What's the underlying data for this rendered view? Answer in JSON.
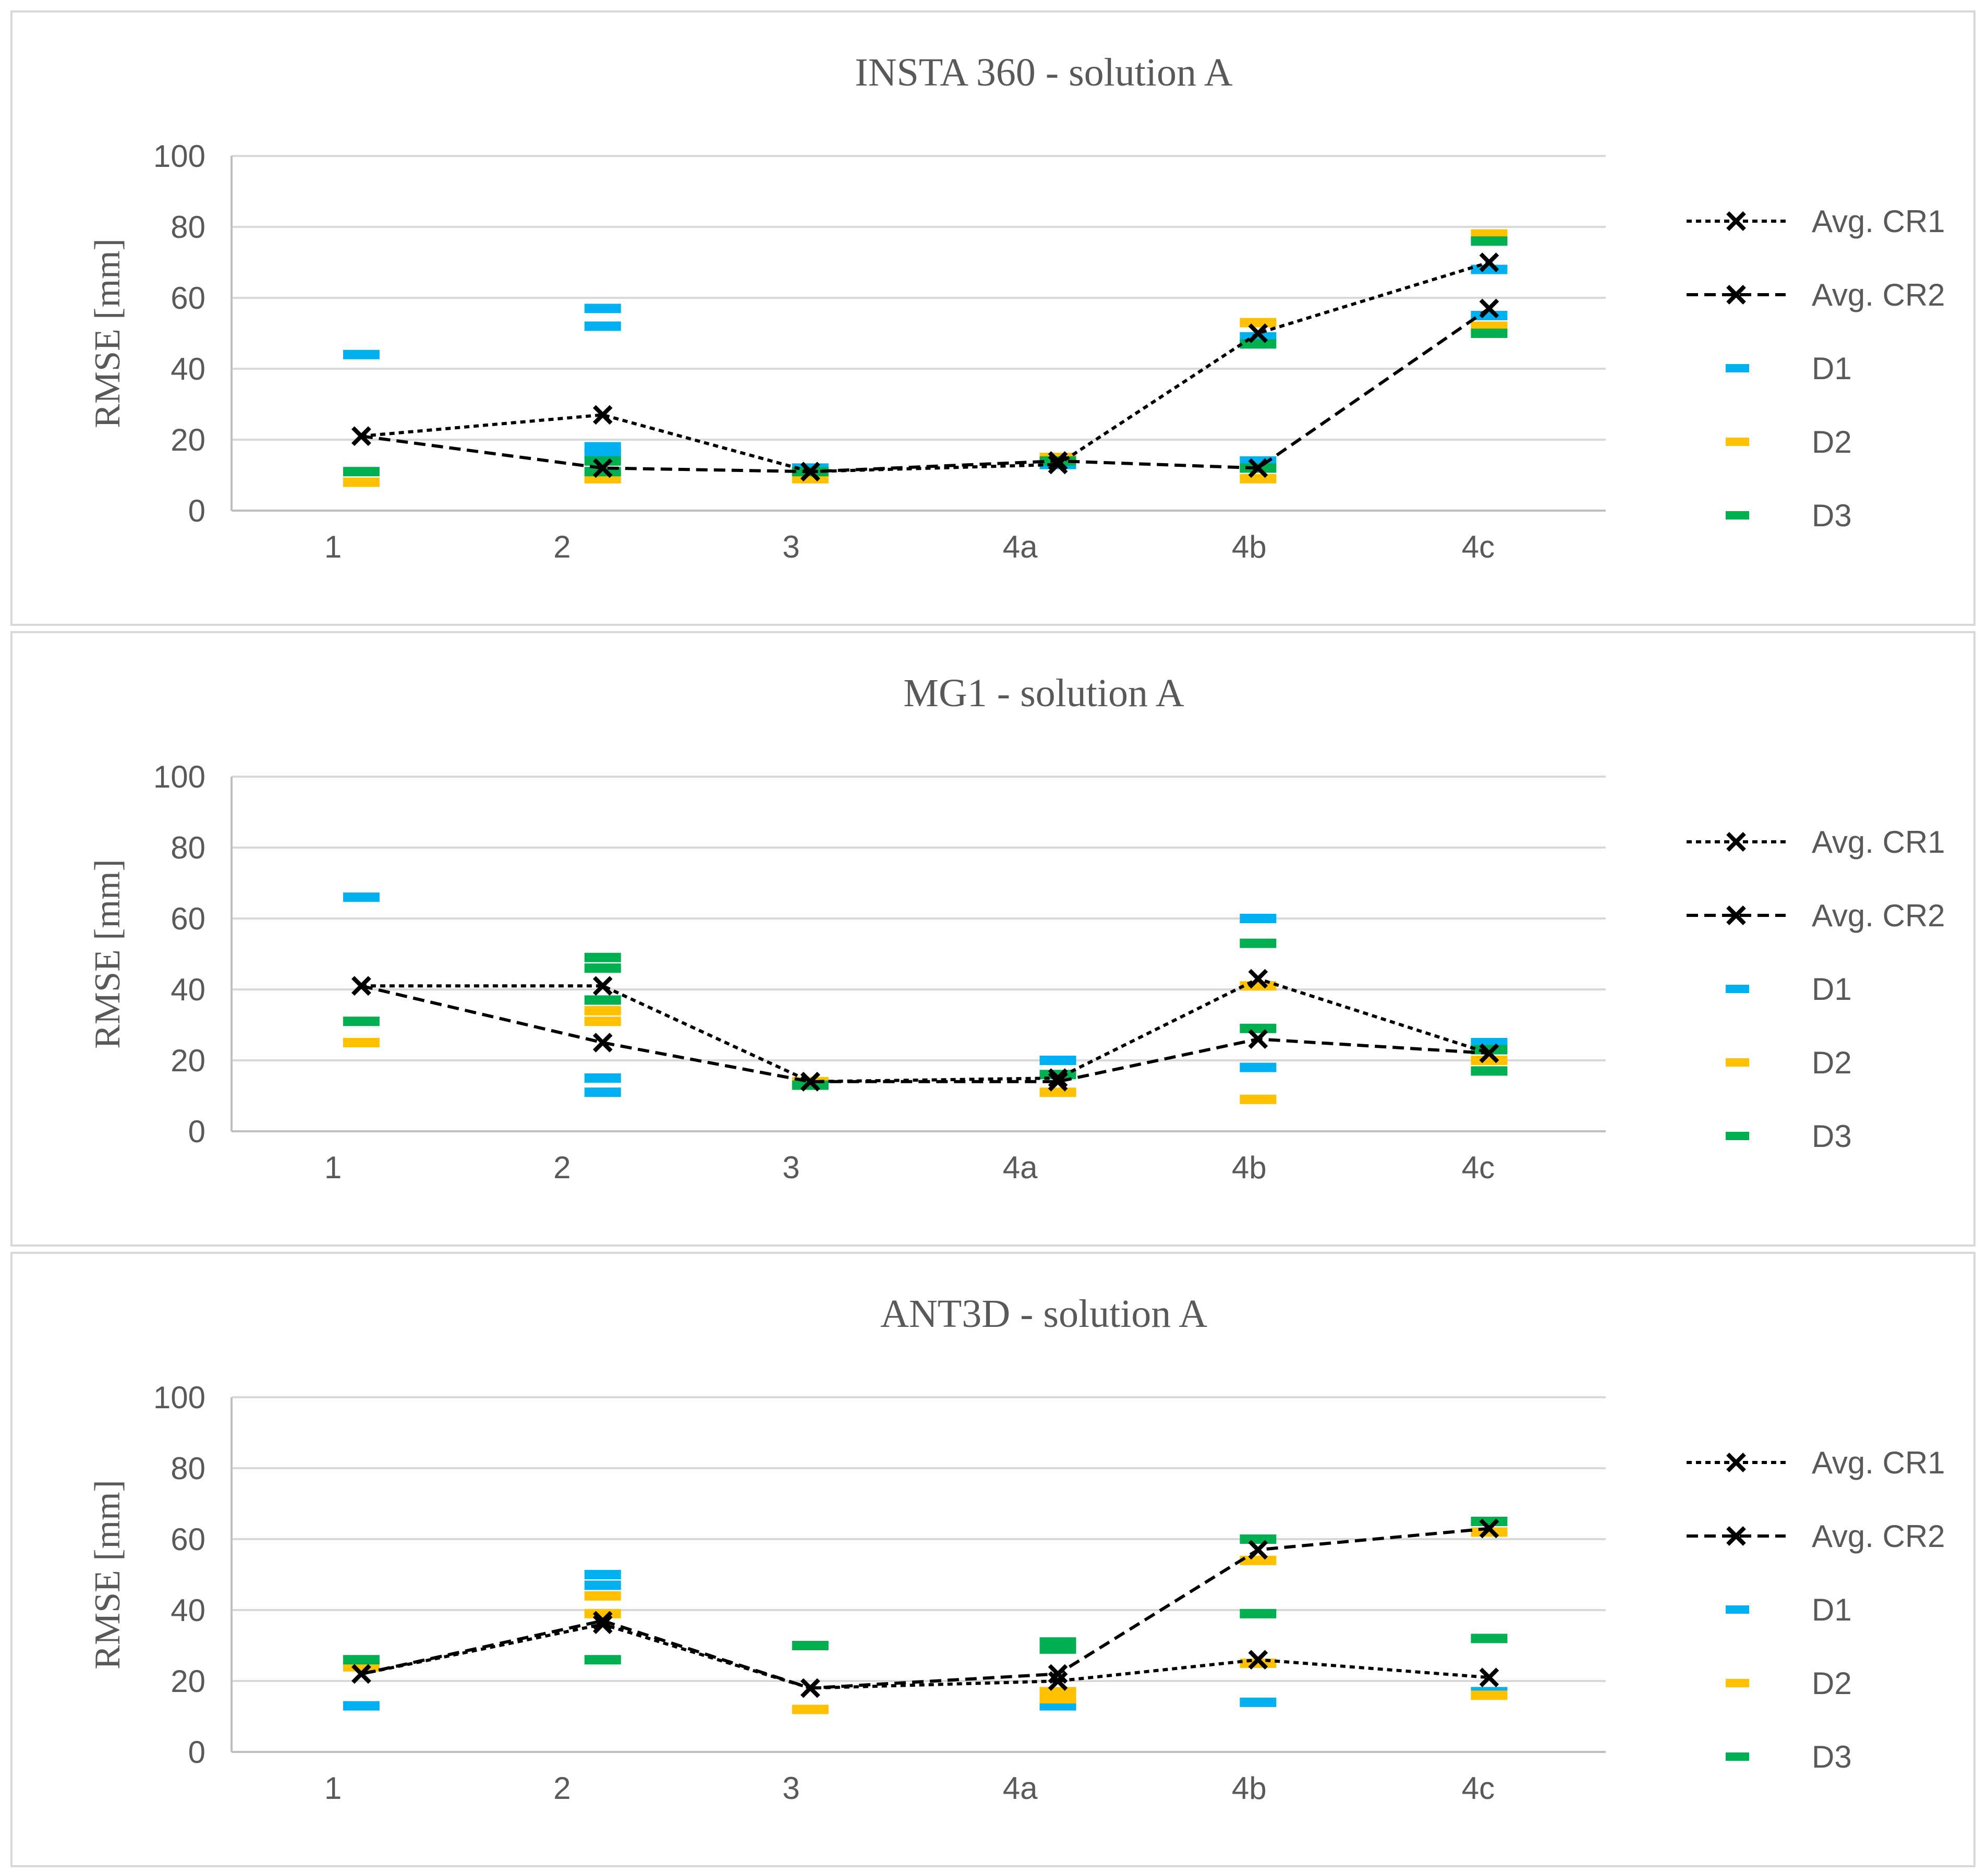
{
  "chart_data": [
    {
      "type": "scatter",
      "title": "INSTA 360 - solution A",
      "xlabel": "",
      "ylabel": "RMSE [mm]",
      "ylim": [
        0,
        100
      ],
      "yticks": [
        0,
        20,
        40,
        60,
        80,
        100
      ],
      "categories": [
        "1",
        "2",
        "3",
        "4a",
        "4b",
        "4c"
      ],
      "grid": true,
      "legend_position": "right",
      "series": [
        {
          "name": "Avg. CR1",
          "kind": "line",
          "style": "dotted",
          "color": "#000000",
          "values": [
            21,
            27,
            11,
            13,
            50,
            70
          ]
        },
        {
          "name": "Avg. CR2",
          "kind": "line",
          "style": "dashed",
          "color": "#000000",
          "values": [
            21,
            12,
            11,
            14,
            12,
            57
          ]
        },
        {
          "name": "D1",
          "kind": "dash",
          "color": "#00b0f0",
          "points": [
            [
              0,
              44
            ],
            [
              1,
              57
            ],
            [
              1,
              52
            ],
            [
              1,
              18
            ],
            [
              1,
              16
            ],
            [
              2,
              12
            ],
            [
              3,
              13
            ],
            [
              4,
              49
            ],
            [
              4,
              14
            ],
            [
              5,
              68
            ],
            [
              5,
              55
            ]
          ]
        },
        {
          "name": "D2",
          "kind": "dash",
          "color": "#ffc000",
          "points": [
            [
              0,
              8
            ],
            [
              1,
              9
            ],
            [
              2,
              9
            ],
            [
              3,
              15
            ],
            [
              4,
              53
            ],
            [
              4,
              9
            ],
            [
              5,
              78
            ],
            [
              5,
              52
            ]
          ]
        },
        {
          "name": "D3",
          "kind": "dash",
          "color": "#00b050",
          "points": [
            [
              0,
              11
            ],
            [
              1,
              14
            ],
            [
              1,
              11
            ],
            [
              2,
              11
            ],
            [
              3,
              14
            ],
            [
              4,
              47
            ],
            [
              4,
              12
            ],
            [
              5,
              76
            ],
            [
              5,
              50
            ]
          ]
        }
      ]
    },
    {
      "type": "scatter",
      "title": "MG1 - solution A",
      "xlabel": "",
      "ylabel": "RMSE [mm]",
      "ylim": [
        0,
        100
      ],
      "yticks": [
        0,
        20,
        40,
        60,
        80,
        100
      ],
      "categories": [
        "1",
        "2",
        "3",
        "4a",
        "4b",
        "4c"
      ],
      "grid": true,
      "legend_position": "right",
      "series": [
        {
          "name": "Avg. CR1",
          "kind": "line",
          "style": "dotted",
          "color": "#000000",
          "values": [
            41,
            41,
            14,
            15,
            43,
            22
          ]
        },
        {
          "name": "Avg. CR2",
          "kind": "line",
          "style": "dashed",
          "color": "#000000",
          "values": [
            41,
            25,
            14,
            14,
            26,
            22
          ]
        },
        {
          "name": "D1",
          "kind": "dash",
          "color": "#00b0f0",
          "points": [
            [
              0,
              66
            ],
            [
              1,
              15
            ],
            [
              1,
              11
            ],
            [
              3,
              20
            ],
            [
              4,
              60
            ],
            [
              4,
              18
            ],
            [
              5,
              25
            ]
          ]
        },
        {
          "name": "D2",
          "kind": "dash",
          "color": "#ffc000",
          "points": [
            [
              0,
              25
            ],
            [
              1,
              34
            ],
            [
              1,
              31
            ],
            [
              2,
              14
            ],
            [
              3,
              11
            ],
            [
              4,
              41
            ],
            [
              4,
              9
            ],
            [
              5,
              20
            ]
          ]
        },
        {
          "name": "D3",
          "kind": "dash",
          "color": "#00b050",
          "points": [
            [
              0,
              31
            ],
            [
              1,
              49
            ],
            [
              1,
              46
            ],
            [
              1,
              37
            ],
            [
              2,
              13
            ],
            [
              3,
              16
            ],
            [
              4,
              53
            ],
            [
              4,
              29
            ],
            [
              5,
              23
            ],
            [
              5,
              17
            ]
          ]
        }
      ]
    },
    {
      "type": "scatter",
      "title": "ANT3D - solution A",
      "xlabel": "",
      "ylabel": "RMSE [mm]",
      "ylim": [
        0,
        100
      ],
      "yticks": [
        0,
        20,
        40,
        60,
        80,
        100
      ],
      "categories": [
        "1",
        "2",
        "3",
        "4a",
        "4b",
        "4c"
      ],
      "grid": true,
      "legend_position": "right",
      "series": [
        {
          "name": "Avg. CR1",
          "kind": "line",
          "style": "dotted",
          "color": "#000000",
          "values": [
            22,
            36,
            18,
            20,
            26,
            21
          ]
        },
        {
          "name": "Avg. CR2",
          "kind": "line",
          "style": "dashed",
          "color": "#000000",
          "values": [
            22,
            37,
            18,
            22,
            57,
            63
          ]
        },
        {
          "name": "D1",
          "kind": "dash",
          "color": "#00b0f0",
          "points": [
            [
              0,
              13
            ],
            [
              1,
              50
            ],
            [
              1,
              47
            ],
            [
              3,
              13
            ],
            [
              4,
              14
            ],
            [
              5,
              17
            ]
          ]
        },
        {
          "name": "D2",
          "kind": "dash",
          "color": "#ffc000",
          "points": [
            [
              0,
              24
            ],
            [
              1,
              44
            ],
            [
              1,
              39
            ],
            [
              2,
              12
            ],
            [
              3,
              17
            ],
            [
              3,
              15
            ],
            [
              4,
              54
            ],
            [
              4,
              25
            ],
            [
              5,
              62
            ],
            [
              5,
              16
            ]
          ]
        },
        {
          "name": "D3",
          "kind": "dash",
          "color": "#00b050",
          "points": [
            [
              0,
              26
            ],
            [
              1,
              26
            ],
            [
              2,
              30
            ],
            [
              3,
              31
            ],
            [
              3,
              29
            ],
            [
              4,
              60
            ],
            [
              4,
              39
            ],
            [
              5,
              65
            ],
            [
              5,
              32
            ]
          ]
        }
      ]
    }
  ]
}
